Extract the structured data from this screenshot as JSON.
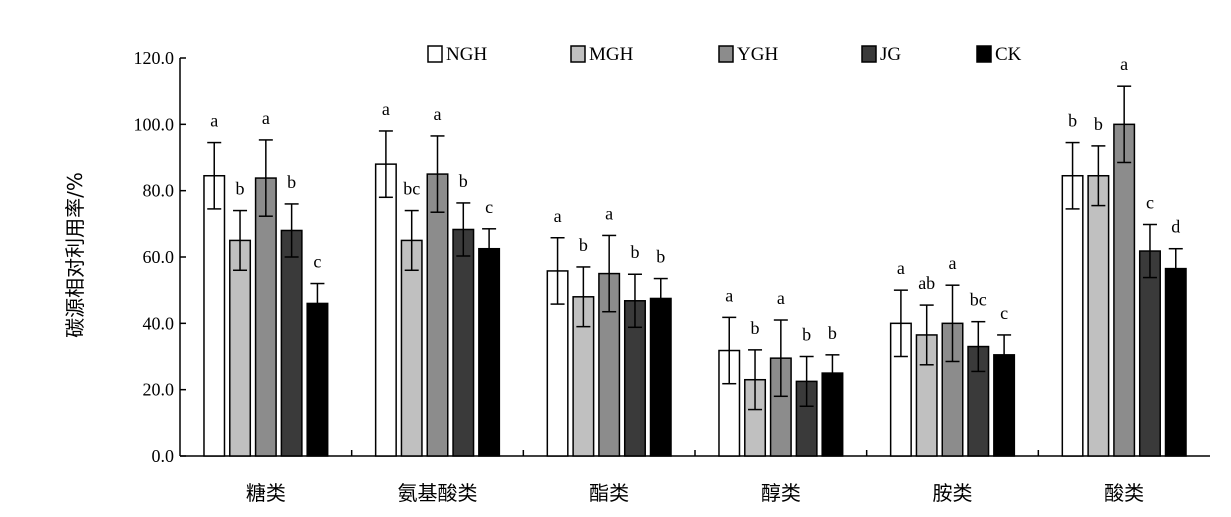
{
  "chart_data": {
    "type": "bar",
    "title": "",
    "xlabel": "",
    "ylabel": "碳源相对利用率/%",
    "ylim": [
      0,
      120
    ],
    "yticks": [
      "0.0",
      "20.0",
      "40.0",
      "60.0",
      "80.0",
      "100.0",
      "120.0"
    ],
    "grid": false,
    "legend_position": "top",
    "categories": [
      "糖类",
      "氨基酸类",
      "酯类",
      "醇类",
      "胺类",
      "酸类"
    ],
    "series": [
      {
        "name": "NGH",
        "color": "#ffffff",
        "values": [
          84.5,
          88.0,
          55.8,
          31.8,
          40.0,
          84.5
        ],
        "errors": [
          10.0,
          10.0,
          10.0,
          10.0,
          10.0,
          10.0
        ],
        "labels": [
          "a",
          "a",
          "a",
          "a",
          "a",
          "b"
        ]
      },
      {
        "name": "MGH",
        "color": "#c0c0c0",
        "values": [
          65.0,
          65.0,
          48.0,
          23.0,
          36.5,
          84.5
        ],
        "errors": [
          9.0,
          9.0,
          9.0,
          9.0,
          9.0,
          9.0
        ],
        "labels": [
          "b",
          "bc",
          "b",
          "b",
          "ab",
          "b"
        ]
      },
      {
        "name": "YGH",
        "color": "#8c8c8c",
        "values": [
          83.8,
          85.0,
          55.0,
          29.5,
          40.0,
          100.0
        ],
        "errors": [
          11.5,
          11.5,
          11.5,
          11.5,
          11.5,
          11.5
        ],
        "labels": [
          "a",
          "a",
          "a",
          "a",
          "a",
          "a"
        ]
      },
      {
        "name": "JG",
        "color": "#3a3a3a",
        "values": [
          68.0,
          68.3,
          46.8,
          22.5,
          33.0,
          61.8
        ],
        "errors": [
          8.0,
          8.0,
          8.0,
          7.5,
          7.5,
          8.0
        ],
        "labels": [
          "b",
          "b",
          "b",
          "b",
          "bc",
          "c"
        ]
      },
      {
        "name": "CK",
        "color": "#000000",
        "values": [
          46.0,
          62.5,
          47.5,
          25.0,
          30.5,
          56.5
        ],
        "errors": [
          6.0,
          6.0,
          6.0,
          5.5,
          6.0,
          6.0
        ],
        "labels": [
          "c",
          "c",
          "b",
          "b",
          "c",
          "d"
        ]
      }
    ]
  }
}
